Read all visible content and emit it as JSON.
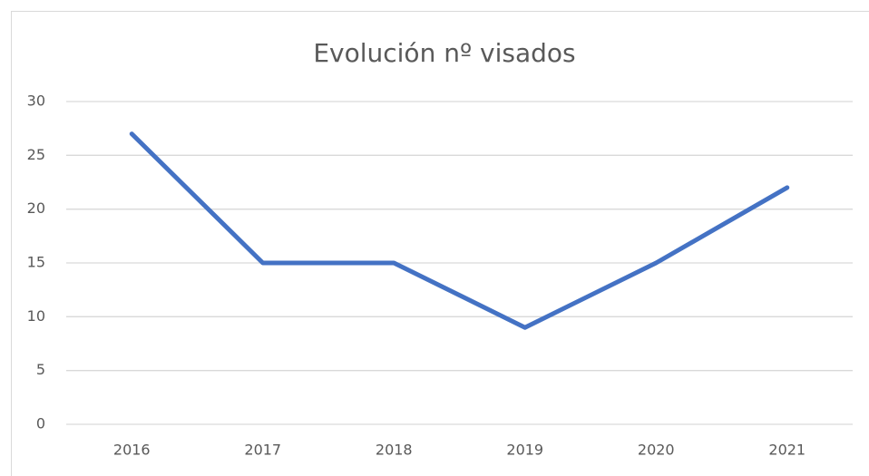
{
  "chart_data": {
    "type": "line",
    "title": "Evolución nº visados",
    "categories": [
      "2016",
      "2017",
      "2018",
      "2019",
      "2020",
      "2021"
    ],
    "values": [
      27,
      15,
      15,
      9,
      15,
      22
    ],
    "color": "#4472c4",
    "ylim": [
      0,
      30
    ],
    "yticks": [
      0,
      5,
      10,
      15,
      20,
      25,
      30
    ],
    "grid": true
  }
}
